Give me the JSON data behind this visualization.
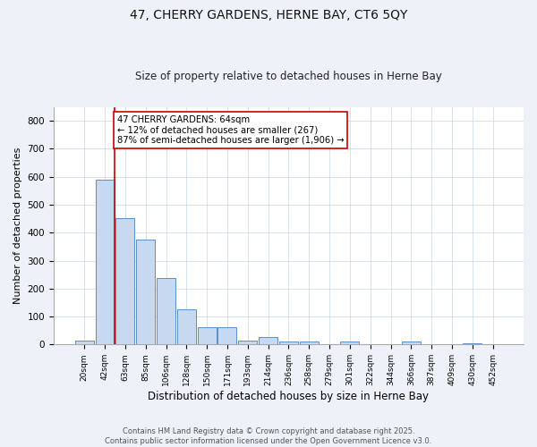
{
  "title": "47, CHERRY GARDENS, HERNE BAY, CT6 5QY",
  "subtitle": "Size of property relative to detached houses in Herne Bay",
  "xlabel": "Distribution of detached houses by size in Herne Bay",
  "ylabel": "Number of detached properties",
  "bins": [
    "20sqm",
    "42sqm",
    "63sqm",
    "85sqm",
    "106sqm",
    "128sqm",
    "150sqm",
    "171sqm",
    "193sqm",
    "214sqm",
    "236sqm",
    "258sqm",
    "279sqm",
    "301sqm",
    "322sqm",
    "344sqm",
    "366sqm",
    "387sqm",
    "409sqm",
    "430sqm",
    "452sqm"
  ],
  "values": [
    15,
    590,
    453,
    375,
    238,
    125,
    62,
    62,
    15,
    28,
    10,
    10,
    0,
    10,
    0,
    0,
    10,
    0,
    0,
    5,
    0
  ],
  "bar_color": "#c6d9f0",
  "bar_edge_color": "#5b8fc7",
  "highlight_index": 1,
  "highlight_color": "#cc0000",
  "annotation_text": "47 CHERRY GARDENS: 64sqm\n← 12% of detached houses are smaller (267)\n87% of semi-detached houses are larger (1,906) →",
  "annotation_box_color": "#ffffff",
  "annotation_box_edge": "#cc0000",
  "ylim": [
    0,
    850
  ],
  "yticks": [
    0,
    100,
    200,
    300,
    400,
    500,
    600,
    700,
    800
  ],
  "footer_text": "Contains HM Land Registry data © Crown copyright and database right 2025.\nContains public sector information licensed under the Open Government Licence v3.0.",
  "bg_color": "#eef2f8",
  "plot_bg_color": "#ffffff",
  "grid_color": "#c8d4e8",
  "title_fontsize": 10,
  "subtitle_fontsize": 8.5
}
